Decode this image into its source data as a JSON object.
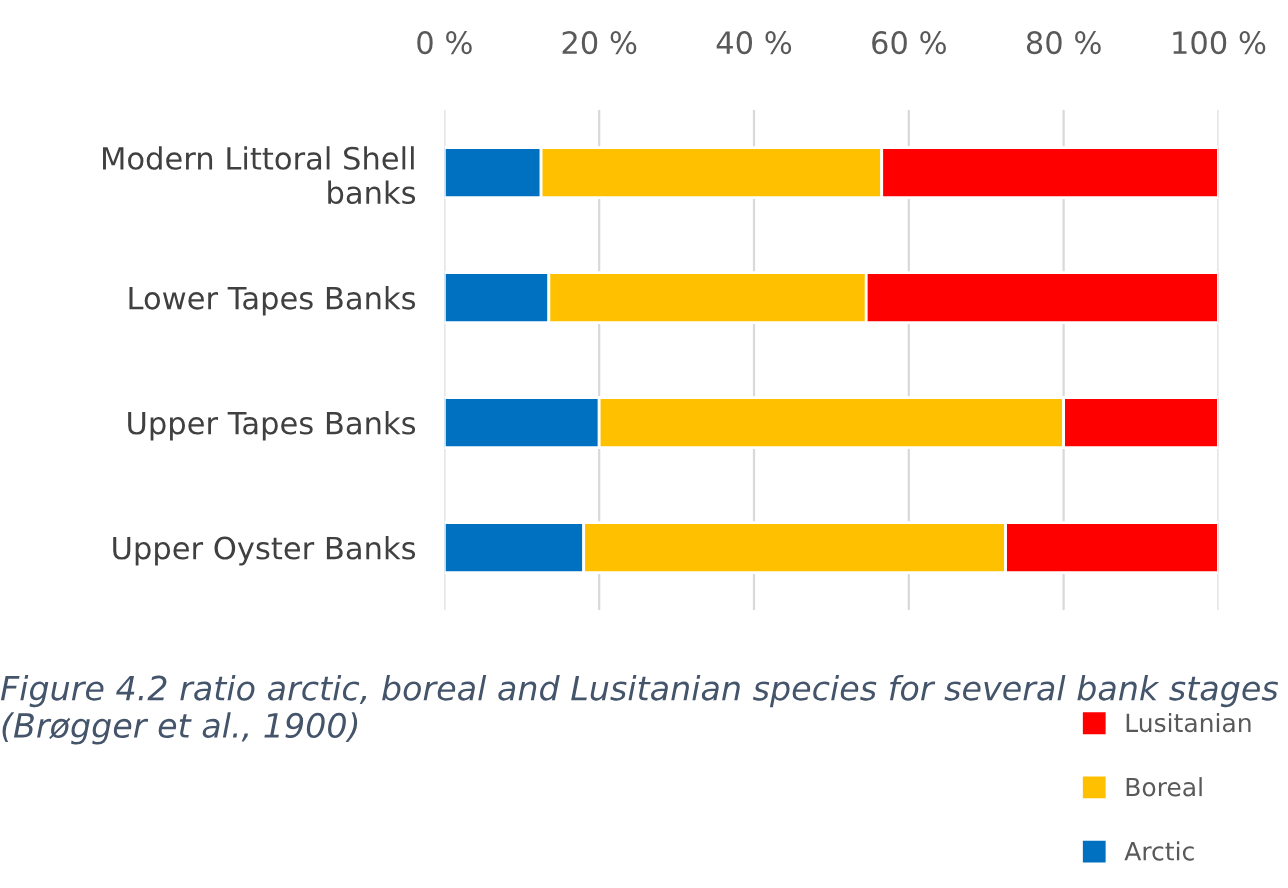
{
  "chart_data": {
    "type": "bar",
    "orientation": "horizontal",
    "stacked": true,
    "categories": [
      "Modern Littoral Shell banks",
      "Lower Tapes Banks",
      "Upper Tapes Banks",
      "Upper Oyster Banks"
    ],
    "series": [
      {
        "name": "Arctic",
        "color": "#0070c0",
        "values": [
          12.5,
          13.5,
          20,
          18
        ]
      },
      {
        "name": "Boreal",
        "color": "#ffc000",
        "values": [
          44,
          41,
          60,
          54.5
        ]
      },
      {
        "name": "Lusitanian",
        "color": "#ff0000",
        "values": [
          43.5,
          45.5,
          20,
          27.5
        ]
      }
    ],
    "xlim": [
      0,
      100
    ],
    "xticks": [
      {
        "value": 0,
        "label": "0 %"
      },
      {
        "value": 20,
        "label": "20 %"
      },
      {
        "value": 40,
        "label": "40 %"
      },
      {
        "value": 60,
        "label": "60 %"
      },
      {
        "value": 80,
        "label": "80 %"
      },
      {
        "value": 100,
        "label": "100 %"
      }
    ],
    "grid": "x",
    "legend": "bottom right",
    "annotations": [
      "Figure 4.2 ratio arctic, boreal and Lusitanian species for several bank stages (Brøgger et al., 1900)"
    ]
  }
}
